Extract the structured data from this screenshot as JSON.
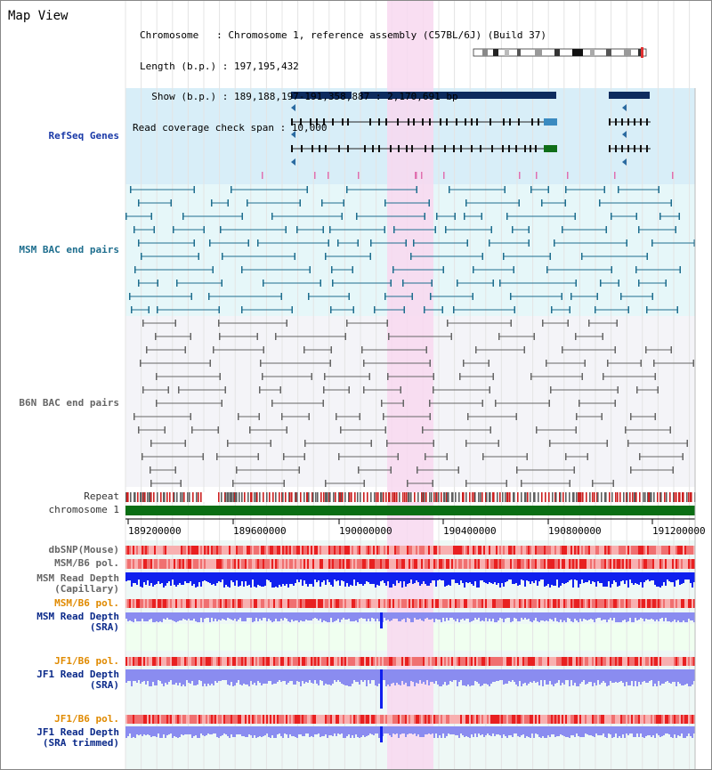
{
  "title": "Map View",
  "header": {
    "chromosome_line": "Chromosome   : Chromosome 1, reference assembly (C57BL/6J) (Build 37)",
    "length_line": "Length (b.p.) : 197,195,432",
    "show_line": "  Show (b.p.) : 189,188,197-191,358,887 : 2,170,691 bp",
    "coverage_line": "Read coverage check span : 10,000"
  },
  "tracks": {
    "refseq": "RefSeq Genes",
    "msm_bac": "MSM BAC end pairs",
    "b6n_bac": "B6N BAC end pairs",
    "repeat": "Repeat",
    "chromosome": "chromosome 1",
    "dbsnp": "dbSNP(Mouse)",
    "msm_b6_pol": "MSM/B6 pol.",
    "msm_read_cap": "MSM Read Depth\n(Capillary)",
    "msm_b6_pol2": "MSM/B6 pol.",
    "msm_read_sra": "MSM Read Depth\n(SRA)",
    "jf1_b6_pol": "JF1/B6 pol.",
    "jf1_read_sra": "JF1 Read Depth\n(SRA)",
    "jf1_b6_pol2": "JF1/B6 pol.",
    "jf1_read_trim": "JF1 Read Depth\n(SRA trimmed)"
  },
  "axis": {
    "ticks": [
      "189200000",
      "189600000",
      "190000000",
      "190400000",
      "190800000",
      "191200000"
    ]
  },
  "colors": {
    "highlight": "#f8d8f0",
    "refseq_bg": "#d8eef8",
    "bac_bg": "#e6f7f9",
    "gene_navy": "#0d2b5e",
    "gene_green": "#0f6e18",
    "msm_line": "#1e6e8e",
    "b6n_line": "#666666",
    "chrom_green": "#0a6e14",
    "depth_blue": "#1020ee",
    "depth_light": "#8a8cf0",
    "pol_red": "#e83838"
  }
}
